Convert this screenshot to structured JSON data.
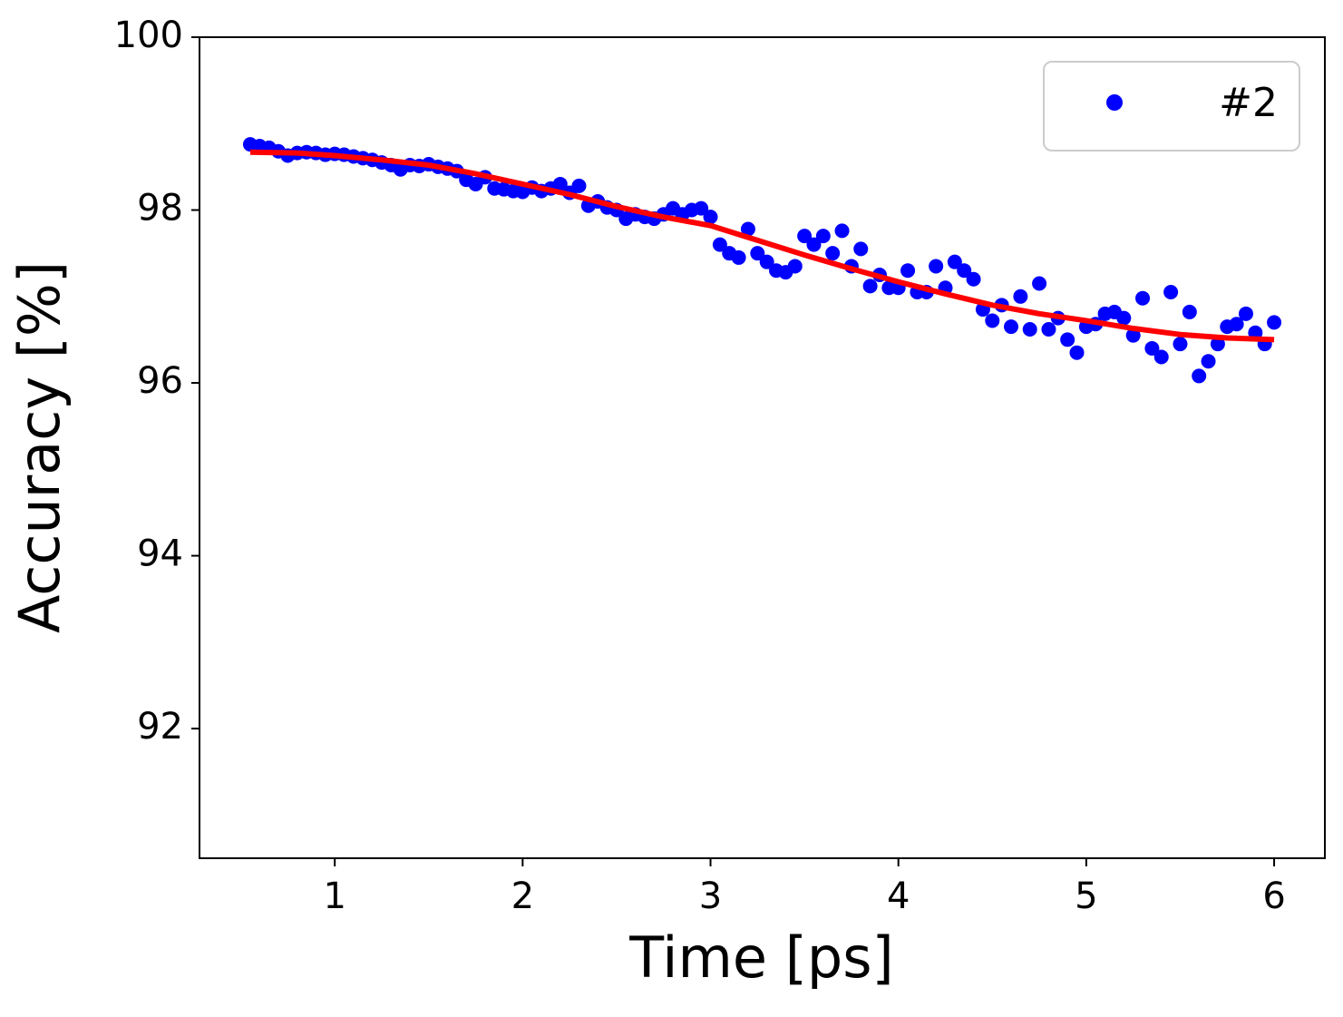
{
  "chart_data": {
    "type": "scatter",
    "xlabel": "Time [ps]",
    "ylabel": "Accuracy [%]",
    "xlim": [
      0.28,
      6.27
    ],
    "ylim": [
      90.5,
      100
    ],
    "xticks": [
      1,
      2,
      3,
      4,
      5,
      6
    ],
    "yticks": [
      92,
      94,
      96,
      98,
      100
    ],
    "legend": "upper right",
    "series": [
      {
        "name": "#2",
        "type": "scatter",
        "color": "#0000ff",
        "x": [
          0.55,
          0.6,
          0.65,
          0.7,
          0.75,
          0.8,
          0.85,
          0.9,
          0.95,
          1.0,
          1.05,
          1.1,
          1.15,
          1.2,
          1.25,
          1.3,
          1.35,
          1.4,
          1.45,
          1.5,
          1.55,
          1.6,
          1.65,
          1.7,
          1.75,
          1.8,
          1.85,
          1.9,
          1.95,
          2.0,
          2.05,
          2.1,
          2.15,
          2.2,
          2.25,
          2.3,
          2.35,
          2.4,
          2.45,
          2.5,
          2.55,
          2.6,
          2.65,
          2.7,
          2.75,
          2.8,
          2.85,
          2.9,
          2.95,
          3.0,
          3.05,
          3.1,
          3.15,
          3.2,
          3.25,
          3.3,
          3.35,
          3.4,
          3.45,
          3.5,
          3.55,
          3.6,
          3.65,
          3.7,
          3.75,
          3.8,
          3.85,
          3.9,
          3.95,
          4.0,
          4.05,
          4.1,
          4.15,
          4.2,
          4.25,
          4.3,
          4.35,
          4.4,
          4.45,
          4.5,
          4.55,
          4.6,
          4.65,
          4.7,
          4.75,
          4.8,
          4.85,
          4.9,
          4.95,
          5.0,
          5.05,
          5.1,
          5.15,
          5.2,
          5.25,
          5.3,
          5.35,
          5.4,
          5.45,
          5.5,
          5.55,
          5.6,
          5.65,
          5.7,
          5.75,
          5.8,
          5.85,
          5.9,
          5.95,
          6.0
        ],
        "values": [
          98.76,
          98.74,
          98.72,
          98.68,
          98.63,
          98.66,
          98.67,
          98.66,
          98.64,
          98.65,
          98.64,
          98.62,
          98.6,
          98.58,
          98.55,
          98.52,
          98.47,
          98.52,
          98.51,
          98.53,
          98.5,
          98.48,
          98.45,
          98.35,
          98.3,
          98.38,
          98.25,
          98.24,
          98.22,
          98.21,
          98.26,
          98.22,
          98.25,
          98.3,
          98.2,
          98.28,
          98.05,
          98.1,
          98.03,
          98.0,
          97.9,
          97.95,
          97.92,
          97.9,
          97.95,
          98.02,
          97.95,
          98.0,
          98.02,
          97.92,
          97.6,
          97.5,
          97.45,
          97.78,
          97.5,
          97.4,
          97.3,
          97.28,
          97.35,
          97.7,
          97.6,
          97.7,
          97.5,
          97.76,
          97.35,
          97.55,
          97.12,
          97.25,
          97.1,
          97.1,
          97.3,
          97.05,
          97.05,
          97.35,
          97.1,
          97.4,
          97.3,
          97.2,
          96.85,
          96.72,
          96.9,
          96.65,
          97.0,
          96.62,
          97.15,
          96.62,
          96.75,
          96.5,
          96.35,
          96.65,
          96.68,
          96.8,
          96.82,
          96.75,
          96.55,
          96.98,
          96.4,
          96.3,
          97.05,
          96.45,
          96.82,
          96.08,
          96.25,
          96.45,
          96.65,
          96.68,
          96.8,
          96.58,
          96.45,
          96.7
        ]
      },
      {
        "type": "line",
        "color": "#ff0000",
        "x": [
          0.55,
          0.8,
          1.0,
          1.25,
          1.5,
          1.75,
          2.0,
          2.25,
          2.5,
          2.75,
          3.0,
          3.25,
          3.5,
          3.75,
          4.0,
          4.25,
          4.5,
          4.75,
          5.0,
          5.25,
          5.5,
          5.75,
          6.0
        ],
        "values": [
          98.67,
          98.66,
          98.63,
          98.58,
          98.52,
          98.42,
          98.3,
          98.18,
          98.04,
          97.92,
          97.82,
          97.65,
          97.48,
          97.32,
          97.17,
          97.03,
          96.9,
          96.8,
          96.72,
          96.63,
          96.56,
          96.52,
          96.5
        ]
      }
    ]
  }
}
